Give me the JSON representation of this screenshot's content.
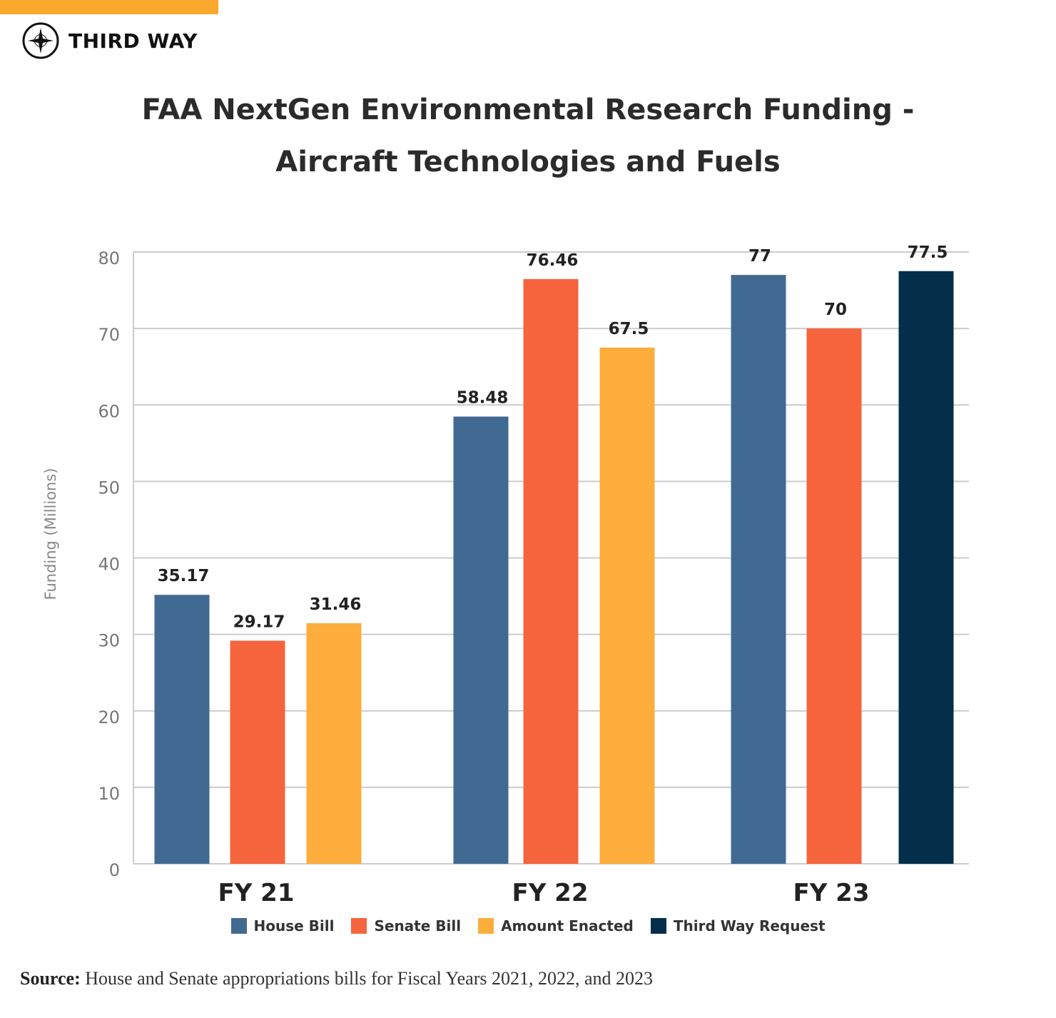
{
  "brand": {
    "name": "THIRD WAY",
    "icon": "compass-star-icon"
  },
  "chart_data": {
    "type": "bar",
    "title_lines": [
      "FAA NextGen Environmental Research Funding -",
      "Aircraft Technologies and Fuels"
    ],
    "ylabel": "Funding (Millions)",
    "xlabel": "",
    "ylim": [
      0,
      80
    ],
    "yticks": [
      "0",
      "10",
      "20",
      "30",
      "40",
      "50",
      "60",
      "70",
      "80"
    ],
    "grid": true,
    "legend_position": "bottom",
    "categories": [
      "FY 21",
      "FY 22",
      "FY 23"
    ],
    "series": [
      {
        "name": "House Bill",
        "color": "#416A93",
        "values": [
          35.17,
          58.48,
          77
        ]
      },
      {
        "name": "Senate Bill",
        "color": "#F5643D",
        "values": [
          29.17,
          76.46,
          70
        ]
      },
      {
        "name": "Amount Enacted",
        "color": "#FCAD3B",
        "values": [
          31.46,
          67.5,
          null
        ]
      },
      {
        "name": "Third Way Request",
        "color": "#032F4A",
        "values": [
          null,
          null,
          77.5
        ]
      }
    ],
    "data_labels": [
      [
        "35.17",
        "58.48",
        "77"
      ],
      [
        "29.17",
        "76.46",
        "70"
      ],
      [
        "31.46",
        "67.5",
        ""
      ],
      [
        "",
        "",
        "77.5"
      ]
    ]
  },
  "source": {
    "label": "Source:",
    "text": "House and Senate appropriations bills for Fiscal Years 2021, 2022, and 2023"
  },
  "colors": {
    "accent": "#FBA82F",
    "grid": "#CCCCCC",
    "axis_text": "#777777"
  }
}
